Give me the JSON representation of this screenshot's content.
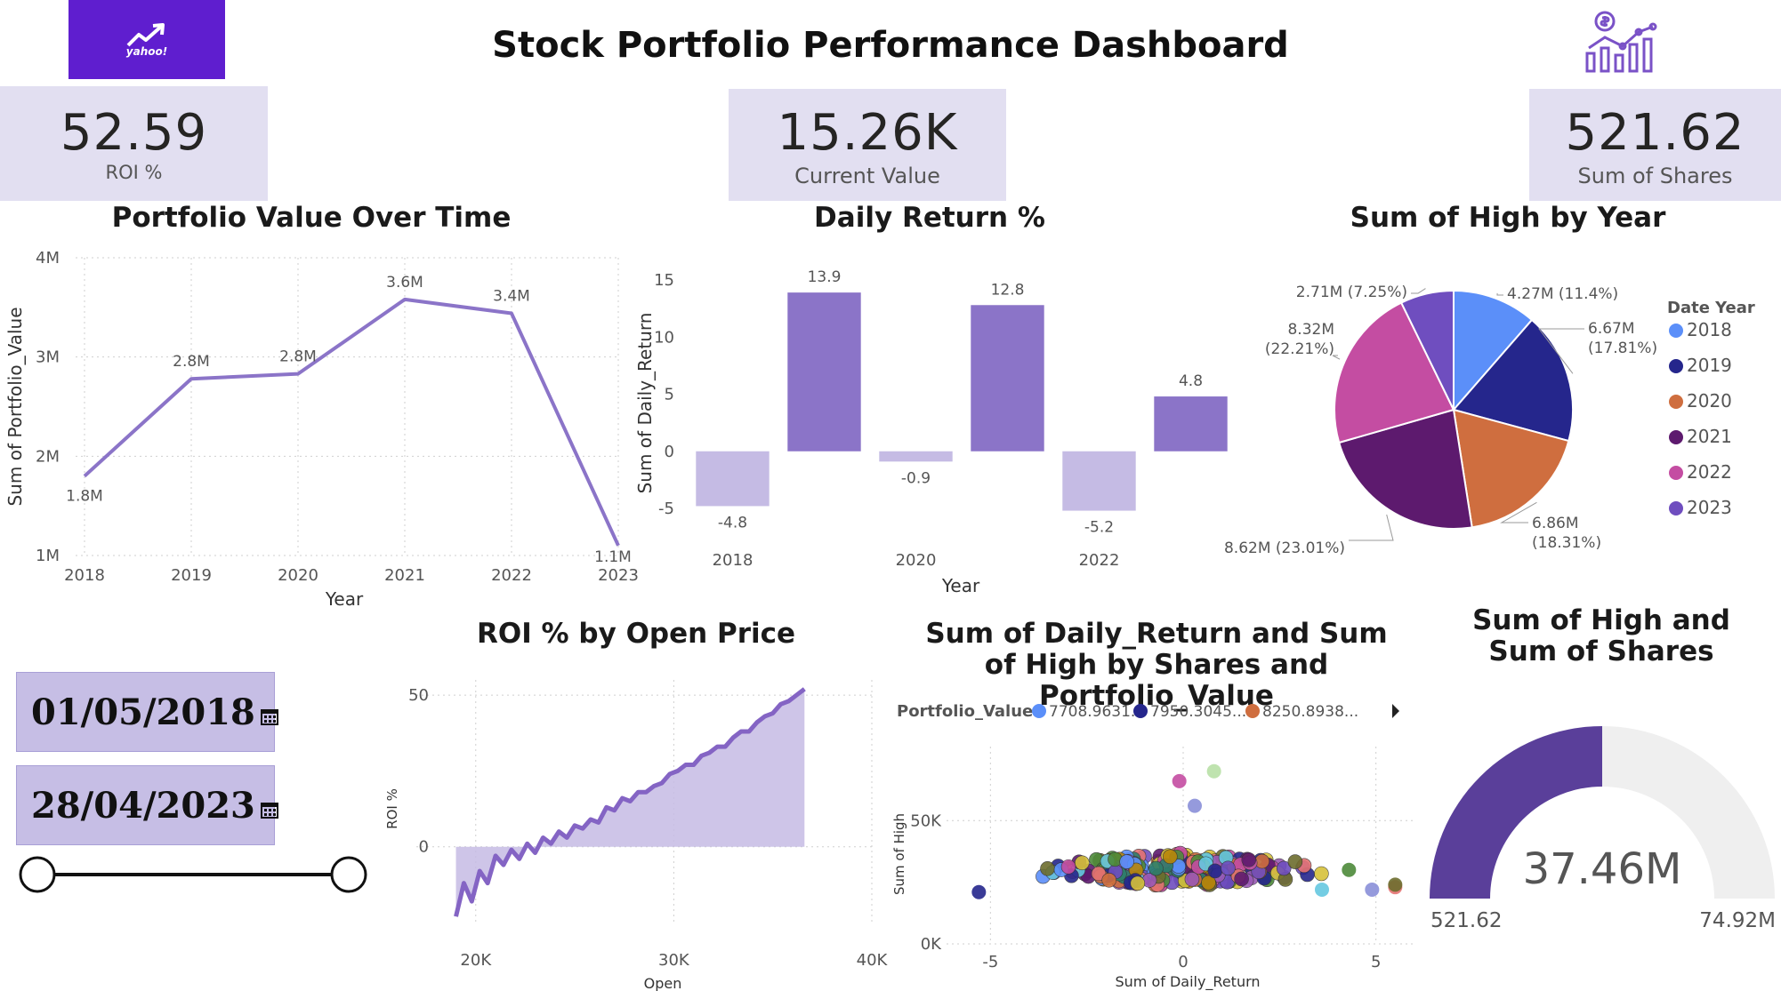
{
  "header": {
    "title": "Stock Portfolio Performance Dashboard",
    "logo_text": "yahoo!"
  },
  "kpis": [
    {
      "value": "52.59",
      "label": "ROI %"
    },
    {
      "value": "15.26K",
      "label": "Current Value"
    },
    {
      "value": "521.62",
      "label": "Sum of Shares"
    }
  ],
  "date_slicer": {
    "start": "01/05/2018",
    "end": "28/04/2023"
  },
  "colors": {
    "accent": "#8b74c8",
    "accent_light": "#c5bbe4",
    "kpi_bg": "#e2dff1",
    "logo_bg": "#5f1ecf",
    "gauge_fill": "#5a3f9a",
    "gauge_track": "#efefef"
  },
  "chart_data": [
    {
      "id": "portfolio",
      "type": "line",
      "title": "Portfolio Value Over Time",
      "xlabel": "Year",
      "ylabel": "Sum of Portfolio_Value",
      "categories": [
        "2018",
        "2019",
        "2020",
        "2021",
        "2022",
        "2023"
      ],
      "values": [
        1.8,
        2.78,
        2.83,
        3.58,
        3.44,
        1.1
      ],
      "data_labels": [
        "1.8M",
        "2.8M",
        "2.8M",
        "3.6M",
        "3.4M",
        "1.1M"
      ],
      "ylim": [
        1,
        4
      ],
      "yticks": [
        "1M",
        "2M",
        "3M",
        "4M"
      ],
      "grid": true
    },
    {
      "id": "daily",
      "type": "bar",
      "title": "Daily Return %",
      "xlabel": "Year",
      "ylabel": "Sum of Daily_Return",
      "categories": [
        "2018",
        "2019",
        "2020",
        "2021",
        "2022",
        "2023"
      ],
      "values": [
        -4.8,
        13.9,
        -0.9,
        12.8,
        -5.2,
        4.8
      ],
      "data_labels": [
        "-4.8",
        "13.9",
        "-0.9",
        "12.8",
        "-5.2",
        "4.8"
      ],
      "xtick_labels": [
        "2018",
        "",
        "2020",
        "",
        "2022",
        ""
      ],
      "ylim": [
        -5,
        15
      ],
      "yticks": [
        "-5",
        "0",
        "5",
        "10",
        "15"
      ]
    },
    {
      "id": "pie",
      "type": "pie",
      "title": "Sum of High by Year",
      "legend_title": "Date Year",
      "legend_position": "right",
      "slices": [
        {
          "label": "2018",
          "value": 4.27,
          "text": "4.27M (11.4%)",
          "color": "#5b8ff9"
        },
        {
          "label": "2019",
          "value": 6.67,
          "text": "6.67M (17.81%)",
          "color": "#25268c"
        },
        {
          "label": "2020",
          "value": 6.86,
          "text": "6.86M (18.31%)",
          "color": "#cf6e3f"
        },
        {
          "label": "2021",
          "value": 8.62,
          "text": "8.62M (23.01%)",
          "color": "#5d1a6e"
        },
        {
          "label": "2022",
          "value": 8.32,
          "text": "8.32M (22.21%)",
          "color": "#c44da2"
        },
        {
          "label": "2023",
          "value": 2.71,
          "text": "2.71M (7.25%)",
          "color": "#6f4ebf"
        }
      ]
    },
    {
      "id": "roi",
      "type": "area",
      "title": "ROI % by Open Price",
      "xlabel": "Open",
      "ylabel": "ROI %",
      "xlim": [
        17000,
        40000
      ],
      "ylim": [
        -25,
        55
      ],
      "xticks": [
        "20K",
        "30K",
        "40K"
      ],
      "yticks": [
        "0",
        "50"
      ],
      "points": [
        [
          19000,
          -23
        ],
        [
          19400,
          -12
        ],
        [
          19800,
          -18
        ],
        [
          20200,
          -8
        ],
        [
          20600,
          -12
        ],
        [
          21000,
          -3
        ],
        [
          21400,
          -6
        ],
        [
          21800,
          -1
        ],
        [
          22200,
          -4
        ],
        [
          22600,
          1
        ],
        [
          23000,
          -2
        ],
        [
          23400,
          3
        ],
        [
          23800,
          1
        ],
        [
          24200,
          5
        ],
        [
          24600,
          3
        ],
        [
          25000,
          7
        ],
        [
          25400,
          6
        ],
        [
          25800,
          9
        ],
        [
          26200,
          8
        ],
        [
          26600,
          13
        ],
        [
          27000,
          12
        ],
        [
          27400,
          16
        ],
        [
          27800,
          15
        ],
        [
          28200,
          18
        ],
        [
          28600,
          18
        ],
        [
          29000,
          20
        ],
        [
          29400,
          21
        ],
        [
          29800,
          24
        ],
        [
          30200,
          25
        ],
        [
          30600,
          27
        ],
        [
          31000,
          27
        ],
        [
          31400,
          30
        ],
        [
          31800,
          31
        ],
        [
          32200,
          33
        ],
        [
          32600,
          33
        ],
        [
          33000,
          36
        ],
        [
          33400,
          38
        ],
        [
          33800,
          38
        ],
        [
          34200,
          41
        ],
        [
          34600,
          43
        ],
        [
          35000,
          44
        ],
        [
          35400,
          47
        ],
        [
          35800,
          48
        ],
        [
          36200,
          50
        ],
        [
          36600,
          52
        ]
      ]
    },
    {
      "id": "scatter",
      "type": "scatter",
      "title": "Sum of Daily_Return and Sum of High by Shares and Portfolio_Value",
      "xlabel": "Sum of Daily_Return",
      "ylabel": "Sum of High",
      "legend_title": "Portfolio_Value",
      "legend_position": "top",
      "legend": [
        {
          "name": "7708.9631...",
          "color": "#5b8ff9"
        },
        {
          "name": "7950.3045...",
          "color": "#25268c"
        },
        {
          "name": "8250.8938...",
          "color": "#cf6e3f"
        }
      ],
      "xlim": [
        -6,
        6
      ],
      "ylim": [
        0,
        80000
      ],
      "xticks": [
        "-5",
        "0",
        "5"
      ],
      "yticks": [
        "0K",
        "50K"
      ],
      "outliers": [
        {
          "x": -5.3,
          "y": 21000,
          "color": "#25268c"
        },
        {
          "x": -0.1,
          "y": 66000,
          "color": "#c44da2"
        },
        {
          "x": 0.8,
          "y": 70000,
          "color": "#b8e0a6"
        },
        {
          "x": 0.3,
          "y": 56000,
          "color": "#8a8fd8"
        },
        {
          "x": 3.6,
          "y": 22000,
          "color": "#65c8e0"
        },
        {
          "x": 4.3,
          "y": 30000,
          "color": "#4d8a3a"
        },
        {
          "x": 4.9,
          "y": 22000,
          "color": "#8a8fd8"
        },
        {
          "x": 5.5,
          "y": 23000,
          "color": "#e57373"
        },
        {
          "x": 5.5,
          "y": 24000,
          "color": "#6d6d2e"
        }
      ]
    },
    {
      "id": "gauge",
      "type": "gauge",
      "title": "Sum of High and Sum of Shares",
      "value": 37.46,
      "value_label": "37.46M",
      "min_label": "521.62",
      "max_label": "74.92M",
      "min": 0,
      "max": 74.92
    }
  ]
}
